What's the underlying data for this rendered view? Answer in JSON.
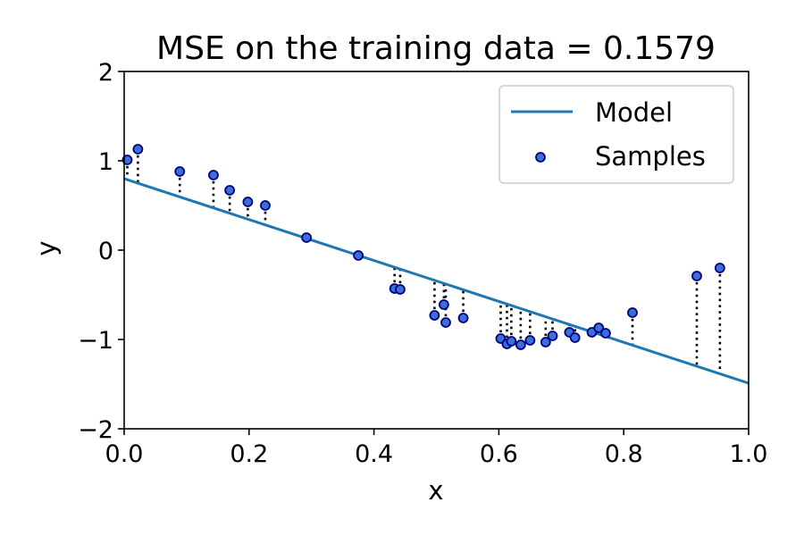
{
  "chart_data": {
    "type": "scatter",
    "title": "MSE on the training data = 0.1579",
    "xlabel": "x",
    "ylabel": "y",
    "xlim": [
      0.0,
      1.0
    ],
    "ylim": [
      -2,
      2
    ],
    "x_ticks": [
      0.0,
      0.2,
      0.4,
      0.6,
      0.8,
      1.0
    ],
    "x_tick_labels": [
      "0.0",
      "0.2",
      "0.4",
      "0.6",
      "0.8",
      "1.0"
    ],
    "y_ticks": [
      -2,
      -1,
      0,
      1,
      2
    ],
    "y_tick_labels": [
      "−2",
      "−1",
      "0",
      "1",
      "2"
    ],
    "grid": false,
    "legend": {
      "position": "top-right",
      "entries": [
        {
          "label": "Model",
          "kind": "line"
        },
        {
          "label": "Samples",
          "kind": "marker"
        }
      ]
    },
    "colors": {
      "model_line": "#1f77b4",
      "sample_face": "#3a6fd8",
      "sample_edge": "#000080",
      "residual": "#000000"
    },
    "series": [
      {
        "name": "Model",
        "kind": "line",
        "x": [
          0.0,
          1.0
        ],
        "y": [
          0.8,
          -1.49
        ]
      },
      {
        "name": "Samples",
        "kind": "scatter",
        "points": [
          [
            0.005,
            1.01
          ],
          [
            0.022,
            1.13
          ],
          [
            0.089,
            0.88
          ],
          [
            0.143,
            0.84
          ],
          [
            0.169,
            0.67
          ],
          [
            0.198,
            0.54
          ],
          [
            0.226,
            0.5
          ],
          [
            0.292,
            0.14
          ],
          [
            0.375,
            -0.06
          ],
          [
            0.433,
            -0.43
          ],
          [
            0.442,
            -0.44
          ],
          [
            0.497,
            -0.73
          ],
          [
            0.512,
            -0.61
          ],
          [
            0.515,
            -0.81
          ],
          [
            0.543,
            -0.76
          ],
          [
            0.603,
            -0.99
          ],
          [
            0.613,
            -1.05
          ],
          [
            0.62,
            -1.02
          ],
          [
            0.635,
            -1.06
          ],
          [
            0.65,
            -1.01
          ],
          [
            0.675,
            -1.03
          ],
          [
            0.686,
            -0.96
          ],
          [
            0.713,
            -0.92
          ],
          [
            0.722,
            -0.98
          ],
          [
            0.749,
            -0.92
          ],
          [
            0.76,
            -0.87
          ],
          [
            0.771,
            -0.93
          ],
          [
            0.814,
            -0.7
          ],
          [
            0.917,
            -0.29
          ],
          [
            0.954,
            -0.2
          ]
        ]
      }
    ]
  }
}
